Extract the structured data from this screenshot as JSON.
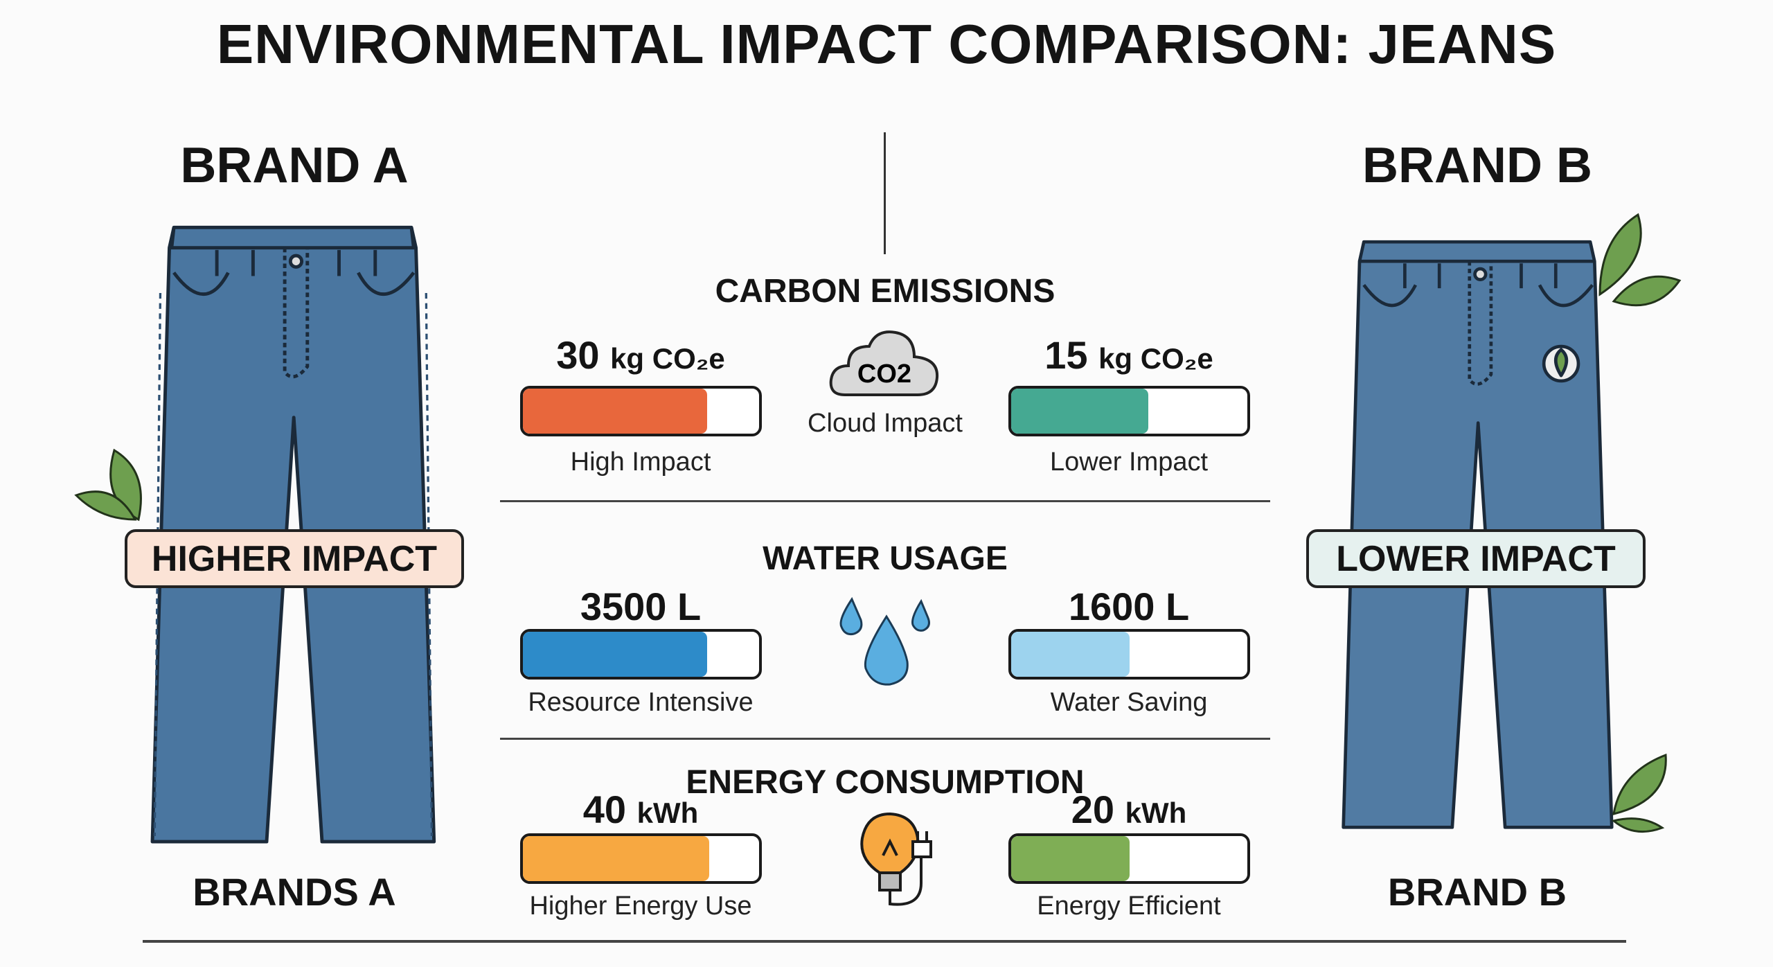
{
  "title": "ENVIRONMENTAL IMPACT COMPARISON: JEANS",
  "brand_a": {
    "heading": "BRAND A",
    "footer": "BRANDS A",
    "badge": "HIGHER IMPACT",
    "badge_color": "#fbe3d6"
  },
  "brand_b": {
    "heading": "BRAND B",
    "footer": "BRAND B",
    "badge": "LOWER IMPACT",
    "badge_color": "#e6f1ef"
  },
  "sections": [
    {
      "title": "CARBON EMISSIONS",
      "icon": "co2-cloud-icon",
      "icon_text": "CO2",
      "icon_label": "Cloud Impact",
      "a": {
        "value": "30",
        "unit": "kg CO₂e",
        "label": "High Impact",
        "fill": 0.78,
        "color": "#e8673c"
      },
      "b": {
        "value": "15",
        "unit": "kg CO₂e",
        "label": "Lower Impact",
        "fill": 0.58,
        "color": "#45a992"
      }
    },
    {
      "title": "WATER USAGE",
      "icon": "water-drops-icon",
      "a": {
        "value": "3500 L",
        "unit": "",
        "label": "Resource Intensive",
        "fill": 0.78,
        "color": "#2d8bc9"
      },
      "b": {
        "value": "1600 L",
        "unit": "",
        "label": "Water Saving",
        "fill": 0.5,
        "color": "#9dd3ee"
      }
    },
    {
      "title": "ENERGY CONSUMPTION",
      "icon": "lightbulb-plug-icon",
      "a": {
        "value": "40",
        "unit": "kWh",
        "label": "Higher Energy Use",
        "fill": 0.79,
        "color": "#f7a841"
      },
      "b": {
        "value": "20",
        "unit": "kWh",
        "label": "Energy Efficient",
        "fill": 0.5,
        "color": "#7fae55"
      }
    }
  ],
  "colors": {
    "denim": "#4a76a0",
    "denim_dark": "#3d6890",
    "leaf": "#6e9f4f"
  }
}
